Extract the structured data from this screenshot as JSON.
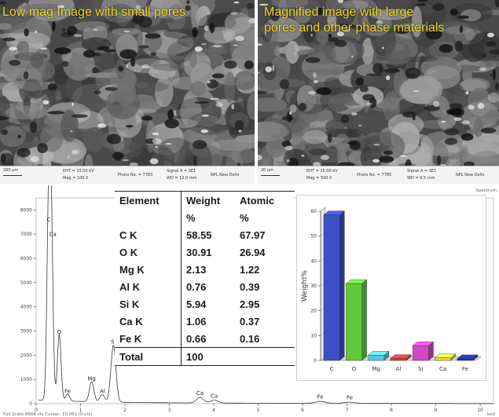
{
  "sem_left": {
    "caption": "Low mag Image  with small pores",
    "databar": {
      "scale": "200 μm",
      "eht": "EHT = 15.00 kV",
      "mag": "Mag =   100 X",
      "photo": "Photo No. = 7783",
      "signal": "Signal A = SE1",
      "wd": "WD = 12.0 mm",
      "lab": "NPL New Delhi"
    }
  },
  "sem_right": {
    "caption_line1": "Magnified image  with  large",
    "caption_line2": "pores and  other phase materials",
    "databar": {
      "scale": "20 μm",
      "eht": "EHT = 15.00 kV",
      "mag": "Mag =   500 X",
      "photo": "Photo No. = 7785",
      "signal": "Signal A = SE1",
      "wd": "WD =  9.5 mm",
      "lab": "NPL New Delhi"
    }
  },
  "spectrum": {
    "top_right_label": "Spectrum",
    "y_ticks": [
      "0",
      "1000",
      "2000",
      "3000",
      "4000",
      "5000",
      "6000",
      "7000",
      "8000"
    ],
    "x_ticks": [
      "0",
      "1",
      "2",
      "3",
      "4",
      "5",
      "6",
      "7",
      "8",
      "9",
      "10"
    ],
    "footer": "Full Scale 8904 cts Cursor: 10.061  (0 cts)",
    "units": "keV",
    "peaks": [
      {
        "label": "C",
        "e": 0.28,
        "counts": 7400
      },
      {
        "label": "Ca",
        "e": 0.34,
        "counts": 7050
      },
      {
        "label": "O",
        "e": 0.52,
        "counts": 2750
      },
      {
        "label": "Fe",
        "e": 0.71,
        "counts": 300
      },
      {
        "label": "Mg",
        "e": 1.25,
        "counts": 820
      },
      {
        "label": "Al",
        "e": 1.49,
        "counts": 300
      },
      {
        "label": "Si",
        "e": 1.74,
        "counts": 2350
      },
      {
        "label": "Ca",
        "e": 3.69,
        "counts": 220
      },
      {
        "label": "Ca",
        "e": 4.01,
        "counts": 120
      },
      {
        "label": "Fe",
        "e": 6.4,
        "counts": 80
      },
      {
        "label": "Fe",
        "e": 7.06,
        "counts": 50
      }
    ]
  },
  "composition_table": {
    "headers": [
      "Element",
      "Weight",
      "Atomic"
    ],
    "units_row": [
      "",
      "%",
      "%"
    ],
    "rows": [
      [
        "C K",
        "58.55",
        "67.97"
      ],
      [
        "O K",
        "30.91",
        "26.94"
      ],
      [
        "Mg K",
        "2.13",
        "1.22"
      ],
      [
        "Al K",
        "0.76",
        "0.39"
      ],
      [
        "Si K",
        "5.94",
        "2.95"
      ],
      [
        "Ca K",
        "1.06",
        "0.37"
      ],
      [
        "Fe K",
        "0.66",
        "0.16"
      ]
    ],
    "total": [
      "Total",
      "100",
      ""
    ]
  },
  "chart_data": {
    "type": "bar",
    "categories": [
      "C",
      "O",
      "Mg",
      "Al",
      "Si",
      "Ca",
      "Fe"
    ],
    "values": [
      58.55,
      30.91,
      2.13,
      0.76,
      5.94,
      1.06,
      0.66
    ],
    "ylabel": "Weight%",
    "ylim": [
      0,
      60
    ],
    "yticks": [
      0,
      10,
      20,
      30,
      40,
      50,
      60
    ],
    "colors": [
      "#3a4fc4",
      "#63c93c",
      "#57c8e0",
      "#d63a3a",
      "#d447c4",
      "#e2e23a",
      "#1f2fa8"
    ],
    "grid": false,
    "three_d": true
  }
}
